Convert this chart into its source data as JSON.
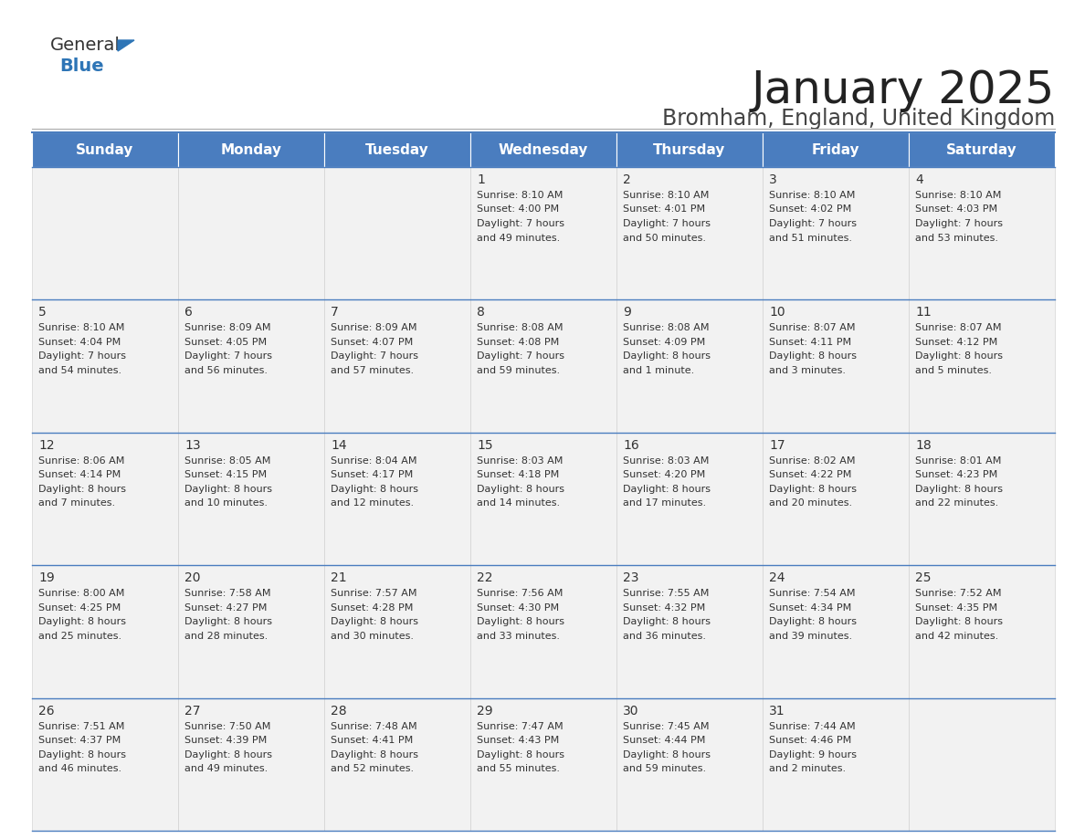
{
  "title": "January 2025",
  "subtitle": "Bromham, England, United Kingdom",
  "header_color": "#4a7dbf",
  "header_text_color": "#FFFFFF",
  "cell_bg_color": "#F2F2F2",
  "border_color": "#4a7dbf",
  "title_color": "#222222",
  "subtitle_color": "#444444",
  "text_color": "#333333",
  "days_of_week": [
    "Sunday",
    "Monday",
    "Tuesday",
    "Wednesday",
    "Thursday",
    "Friday",
    "Saturday"
  ],
  "weeks": [
    [
      {
        "day": "",
        "sunrise": "",
        "sunset": "",
        "daylight": ""
      },
      {
        "day": "",
        "sunrise": "",
        "sunset": "",
        "daylight": ""
      },
      {
        "day": "",
        "sunrise": "",
        "sunset": "",
        "daylight": ""
      },
      {
        "day": "1",
        "sunrise": "8:10 AM",
        "sunset": "4:00 PM",
        "daylight": "7 hours\nand 49 minutes."
      },
      {
        "day": "2",
        "sunrise": "8:10 AM",
        "sunset": "4:01 PM",
        "daylight": "7 hours\nand 50 minutes."
      },
      {
        "day": "3",
        "sunrise": "8:10 AM",
        "sunset": "4:02 PM",
        "daylight": "7 hours\nand 51 minutes."
      },
      {
        "day": "4",
        "sunrise": "8:10 AM",
        "sunset": "4:03 PM",
        "daylight": "7 hours\nand 53 minutes."
      }
    ],
    [
      {
        "day": "5",
        "sunrise": "8:10 AM",
        "sunset": "4:04 PM",
        "daylight": "7 hours\nand 54 minutes."
      },
      {
        "day": "6",
        "sunrise": "8:09 AM",
        "sunset": "4:05 PM",
        "daylight": "7 hours\nand 56 minutes."
      },
      {
        "day": "7",
        "sunrise": "8:09 AM",
        "sunset": "4:07 PM",
        "daylight": "7 hours\nand 57 minutes."
      },
      {
        "day": "8",
        "sunrise": "8:08 AM",
        "sunset": "4:08 PM",
        "daylight": "7 hours\nand 59 minutes."
      },
      {
        "day": "9",
        "sunrise": "8:08 AM",
        "sunset": "4:09 PM",
        "daylight": "8 hours\nand 1 minute."
      },
      {
        "day": "10",
        "sunrise": "8:07 AM",
        "sunset": "4:11 PM",
        "daylight": "8 hours\nand 3 minutes."
      },
      {
        "day": "11",
        "sunrise": "8:07 AM",
        "sunset": "4:12 PM",
        "daylight": "8 hours\nand 5 minutes."
      }
    ],
    [
      {
        "day": "12",
        "sunrise": "8:06 AM",
        "sunset": "4:14 PM",
        "daylight": "8 hours\nand 7 minutes."
      },
      {
        "day": "13",
        "sunrise": "8:05 AM",
        "sunset": "4:15 PM",
        "daylight": "8 hours\nand 10 minutes."
      },
      {
        "day": "14",
        "sunrise": "8:04 AM",
        "sunset": "4:17 PM",
        "daylight": "8 hours\nand 12 minutes."
      },
      {
        "day": "15",
        "sunrise": "8:03 AM",
        "sunset": "4:18 PM",
        "daylight": "8 hours\nand 14 minutes."
      },
      {
        "day": "16",
        "sunrise": "8:03 AM",
        "sunset": "4:20 PM",
        "daylight": "8 hours\nand 17 minutes."
      },
      {
        "day": "17",
        "sunrise": "8:02 AM",
        "sunset": "4:22 PM",
        "daylight": "8 hours\nand 20 minutes."
      },
      {
        "day": "18",
        "sunrise": "8:01 AM",
        "sunset": "4:23 PM",
        "daylight": "8 hours\nand 22 minutes."
      }
    ],
    [
      {
        "day": "19",
        "sunrise": "8:00 AM",
        "sunset": "4:25 PM",
        "daylight": "8 hours\nand 25 minutes."
      },
      {
        "day": "20",
        "sunrise": "7:58 AM",
        "sunset": "4:27 PM",
        "daylight": "8 hours\nand 28 minutes."
      },
      {
        "day": "21",
        "sunrise": "7:57 AM",
        "sunset": "4:28 PM",
        "daylight": "8 hours\nand 30 minutes."
      },
      {
        "day": "22",
        "sunrise": "7:56 AM",
        "sunset": "4:30 PM",
        "daylight": "8 hours\nand 33 minutes."
      },
      {
        "day": "23",
        "sunrise": "7:55 AM",
        "sunset": "4:32 PM",
        "daylight": "8 hours\nand 36 minutes."
      },
      {
        "day": "24",
        "sunrise": "7:54 AM",
        "sunset": "4:34 PM",
        "daylight": "8 hours\nand 39 minutes."
      },
      {
        "day": "25",
        "sunrise": "7:52 AM",
        "sunset": "4:35 PM",
        "daylight": "8 hours\nand 42 minutes."
      }
    ],
    [
      {
        "day": "26",
        "sunrise": "7:51 AM",
        "sunset": "4:37 PM",
        "daylight": "8 hours\nand 46 minutes."
      },
      {
        "day": "27",
        "sunrise": "7:50 AM",
        "sunset": "4:39 PM",
        "daylight": "8 hours\nand 49 minutes."
      },
      {
        "day": "28",
        "sunrise": "7:48 AM",
        "sunset": "4:41 PM",
        "daylight": "8 hours\nand 52 minutes."
      },
      {
        "day": "29",
        "sunrise": "7:47 AM",
        "sunset": "4:43 PM",
        "daylight": "8 hours\nand 55 minutes."
      },
      {
        "day": "30",
        "sunrise": "7:45 AM",
        "sunset": "4:44 PM",
        "daylight": "8 hours\nand 59 minutes."
      },
      {
        "day": "31",
        "sunrise": "7:44 AM",
        "sunset": "4:46 PM",
        "daylight": "9 hours\nand 2 minutes."
      },
      {
        "day": "",
        "sunrise": "",
        "sunset": "",
        "daylight": ""
      }
    ]
  ]
}
